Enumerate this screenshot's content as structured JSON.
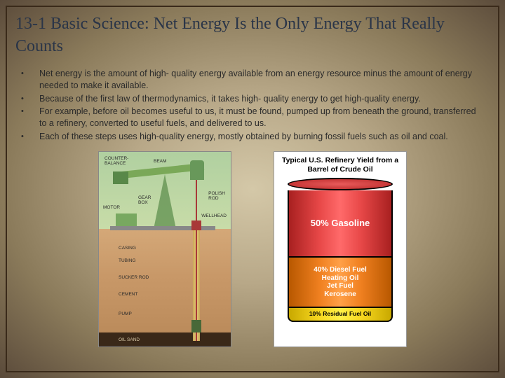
{
  "title": "13-1 Basic Science: Net Energy Is the Only Energy That Really Counts",
  "bullets": [
    "Net energy is the amount of high- quality energy available from an energy resource minus the amount of energy needed to make it available.",
    "Because of the first law of thermodynamics, it takes high- quality energy to get high-quality energy.",
    "For example, before oil becomes useful to us, it must be found, pumped up from beneath the ground, transferred to a refinery, converted to useful fuels, and delivered to us.",
    "Each of these steps uses high-quality energy, mostly obtained by burning fossil fuels such as oil and coal."
  ],
  "pumpjack_labels": {
    "counter": "COUNTER-\nBALANCE",
    "beam": "BEAM",
    "motor": "MOTOR",
    "gearbox": "GEAR\nBOX",
    "polishrod": "POLISH\nROD",
    "wellhead": "WELLHEAD",
    "casing": "CASING",
    "tubing": "TUBING",
    "suckerrod": "SUCKER ROD",
    "cement": "CEMENT",
    "pump": "PUMP",
    "oilsand": "OIL SAND"
  },
  "barrel": {
    "title": "Typical U.S. Refinery Yield from a Barrel of Crude Oil",
    "segments": [
      {
        "label": "50% Gasoline",
        "height_pct": 50,
        "bg_color": "#e84848",
        "text_color": "#ffffff"
      },
      {
        "label": "40% Diesel Fuel\nHeating Oil\nJet Fuel\nKerosene",
        "height_pct": 40,
        "bg_color": "#f08020",
        "text_color": "#ffffff"
      },
      {
        "label": "10% Residual Fuel Oil",
        "height_pct": 10,
        "bg_color": "#f8d820",
        "text_color": "#000000"
      }
    ]
  },
  "colors": {
    "title_color": "#2a3548",
    "body_text": "#2a2a2a",
    "bg_center": "#d4c8a8",
    "bg_edge": "#5a4a3a"
  }
}
